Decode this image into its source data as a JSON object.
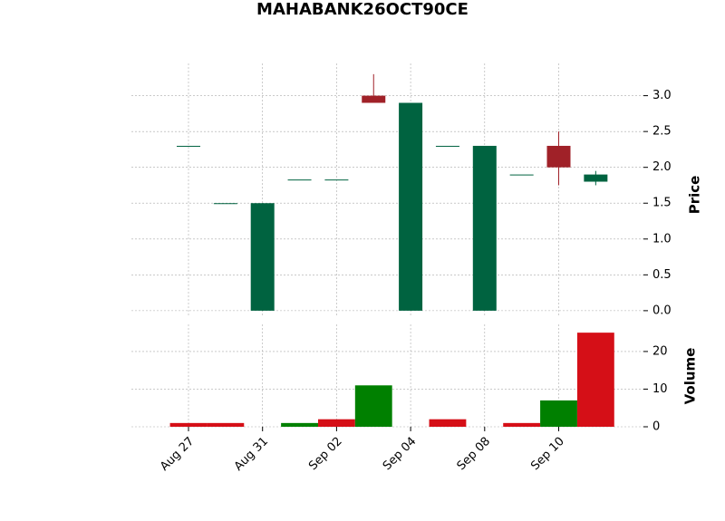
{
  "chart_data": {
    "type": "candlestick",
    "title": "MAHABANK26OCT90CE",
    "categories": [
      "Aug 27",
      null,
      "Aug 31",
      null,
      "Sep 02",
      null,
      "Sep 04",
      null,
      "Sep 08",
      null,
      "Sep 10",
      null
    ],
    "open": [
      2.3,
      1.5,
      0,
      1.83,
      1.83,
      3.0,
      0,
      2.3,
      0,
      1.9,
      2.3,
      1.8
    ],
    "high": [
      2.3,
      1.5,
      1.5,
      1.83,
      1.83,
      3.3,
      2.9,
      2.3,
      2.3,
      1.9,
      2.5,
      1.95
    ],
    "low": [
      2.3,
      1.5,
      0,
      1.83,
      1.83,
      2.9,
      0,
      2.3,
      0,
      1.9,
      1.75,
      1.75
    ],
    "close": [
      2.3,
      1.5,
      1.5,
      1.83,
      1.83,
      2.9,
      2.9,
      2.3,
      2.3,
      1.9,
      2.0,
      1.9
    ],
    "up_color": "#006340",
    "down_color": "#a02128",
    "ylabel": "Price",
    "ylim": [
      -0.09,
      3.45
    ],
    "yticks": [
      {
        "value": 0,
        "label": "0.0"
      },
      {
        "value": 0.5,
        "label": "0.5"
      },
      {
        "value": 1,
        "label": "1.0"
      },
      {
        "value": 1.5,
        "label": "1.5"
      },
      {
        "value": 2,
        "label": "2.0"
      },
      {
        "value": 2.5,
        "label": "2.5"
      },
      {
        "value": 3,
        "label": "3.0"
      }
    ],
    "volume": [
      1,
      1,
      0,
      1,
      2,
      11,
      0,
      2,
      0,
      1,
      7,
      25
    ],
    "volume_colors": [
      "#d50f17",
      "#d50f17",
      "#d50f17",
      "#008000",
      "#d50f17",
      "#008000",
      "#d50f17",
      "#d50f17",
      "#d50f17",
      "#d50f17",
      "#008000",
      "#d50f17"
    ],
    "volume_label": "Volume",
    "volume_ylim": [
      0,
      27.2
    ],
    "volume_yticks": [
      0,
      10,
      20
    ],
    "grid": true
  }
}
